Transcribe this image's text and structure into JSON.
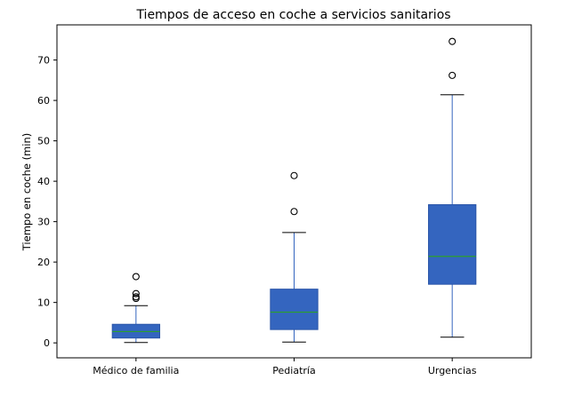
{
  "chart_data": {
    "type": "box",
    "title": "Tiempos de acceso en coche a servicios sanitarios",
    "xlabel": "",
    "ylabel": "Tiempo en coche (min)",
    "ylim": [
      -3.7,
      78.7
    ],
    "yticks": [
      0,
      10,
      20,
      30,
      40,
      50,
      60,
      70
    ],
    "grid": false,
    "box_color": "#3465bf",
    "median_color": "#2ca02c",
    "categories": [
      "Médico de familia",
      "Pediatría",
      "Urgencias"
    ],
    "boxes": [
      {
        "category": "Médico de familia",
        "whisker_low": 0.1,
        "q1": 1.2,
        "median": 2.8,
        "q3": 4.6,
        "whisker_high": 9.2,
        "outliers": [
          11.0,
          11.4,
          12.2,
          16.4
        ]
      },
      {
        "category": "Pediatría",
        "whisker_low": 0.2,
        "q1": 3.3,
        "median": 7.6,
        "q3": 13.3,
        "whisker_high": 27.3,
        "outliers": [
          32.5,
          41.4
        ]
      },
      {
        "category": "Urgencias",
        "whisker_low": 1.4,
        "q1": 14.5,
        "median": 21.4,
        "q3": 34.2,
        "whisker_high": 61.4,
        "outliers": [
          66.2,
          74.6
        ]
      }
    ]
  }
}
